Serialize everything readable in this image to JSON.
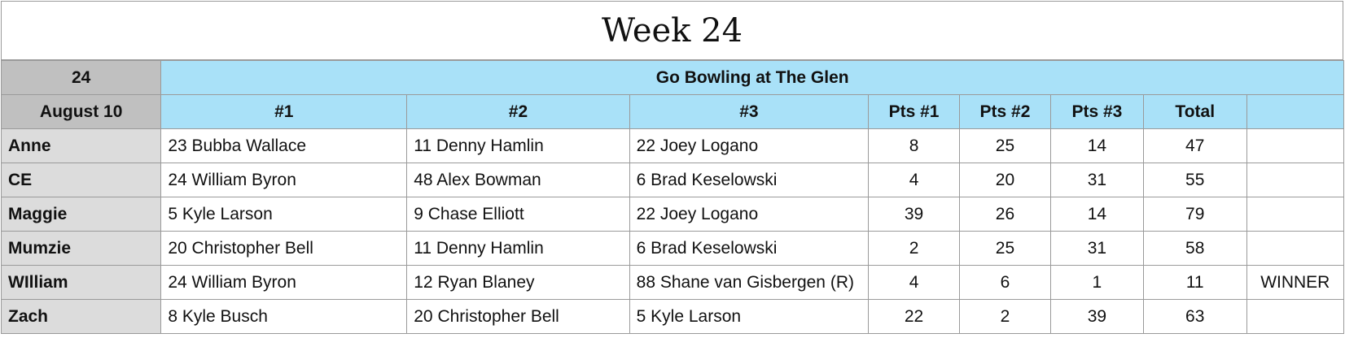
{
  "title": "Week 24",
  "header": {
    "week_number": "24",
    "date": "August 10",
    "race_name": "Go Bowling at The Glen",
    "columns": [
      "#1",
      "#2",
      "#3",
      "Pts #1",
      "Pts #2",
      "Pts #3",
      "Total",
      ""
    ]
  },
  "rows": [
    {
      "name": "Anne",
      "pick1": "23 Bubba Wallace",
      "pick2": "11 Denny Hamlin",
      "pick3": "22 Joey Logano",
      "pts1": "8",
      "pts2": "25",
      "pts3": "14",
      "total": "47",
      "note": ""
    },
    {
      "name": "CE",
      "pick1": "24 William Byron",
      "pick2": "48 Alex Bowman",
      "pick3": "6 Brad Keselowski",
      "pts1": "4",
      "pts2": "20",
      "pts3": "31",
      "total": "55",
      "note": ""
    },
    {
      "name": "Maggie",
      "pick1": "5 Kyle Larson",
      "pick2": "9 Chase Elliott",
      "pick3": "22 Joey Logano",
      "pts1": "39",
      "pts2": "26",
      "pts3": "14",
      "total": "79",
      "note": ""
    },
    {
      "name": "Mumzie",
      "pick1": "20 Christopher Bell",
      "pick2": "11 Denny Hamlin",
      "pick3": "6 Brad Keselowski",
      "pts1": "2",
      "pts2": "25",
      "pts3": "31",
      "total": "58",
      "note": ""
    },
    {
      "name": "WIlliam",
      "pick1": "24 William Byron",
      "pick2": "12 Ryan Blaney",
      "pick3": "88 Shane van Gisbergen (R)",
      "pts1": "4",
      "pts2": "6",
      "pts3": "1",
      "total": "11",
      "note": "WINNER"
    },
    {
      "name": "Zach",
      "pick1": "8 Kyle Busch",
      "pick2": "20 Christopher Bell",
      "pick3": "5 Kyle Larson",
      "pts1": "22",
      "pts2": "2",
      "pts3": "39",
      "total": "63",
      "note": ""
    }
  ],
  "colors": {
    "header_gray": "#c0c0c0",
    "header_blue": "#a9e1f8",
    "name_column_gray": "#dcdcdc",
    "grid_line": "#9a9a9a"
  }
}
